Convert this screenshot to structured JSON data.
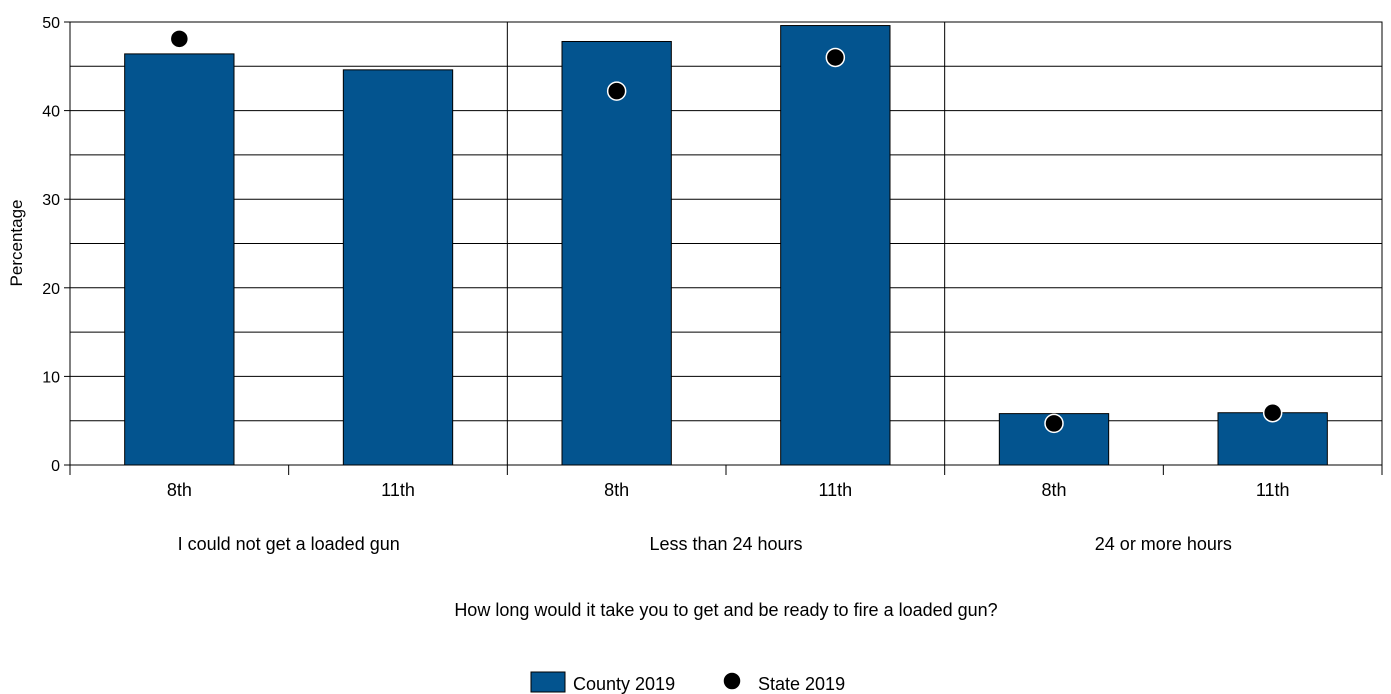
{
  "chart_data": {
    "type": "bar",
    "groups": [
      {
        "label": "I could not get a loaded gun",
        "categories": [
          "8th",
          "11th"
        ]
      },
      {
        "label": "Less than 24 hours",
        "categories": [
          "8th",
          "11th"
        ]
      },
      {
        "label": "24 or more hours",
        "categories": [
          "8th",
          "11th"
        ]
      }
    ],
    "series": [
      {
        "name": "County 2019",
        "kind": "bar",
        "color": "#03548f",
        "values": [
          46.4,
          44.6,
          47.8,
          49.6,
          5.8,
          5.9
        ]
      },
      {
        "name": "State 2019",
        "kind": "marker",
        "color": "#000000",
        "values": [
          48.1,
          null,
          42.2,
          46.0,
          4.7,
          5.9
        ]
      }
    ],
    "ylabel": "Percentage",
    "xlabel": "How long would it take you to get and be ready to fire a loaded gun?",
    "ylim": [
      0,
      50
    ],
    "yticks": [
      0,
      10,
      20,
      30,
      40,
      50
    ],
    "grid": true,
    "legend_position": "bottom-center"
  }
}
